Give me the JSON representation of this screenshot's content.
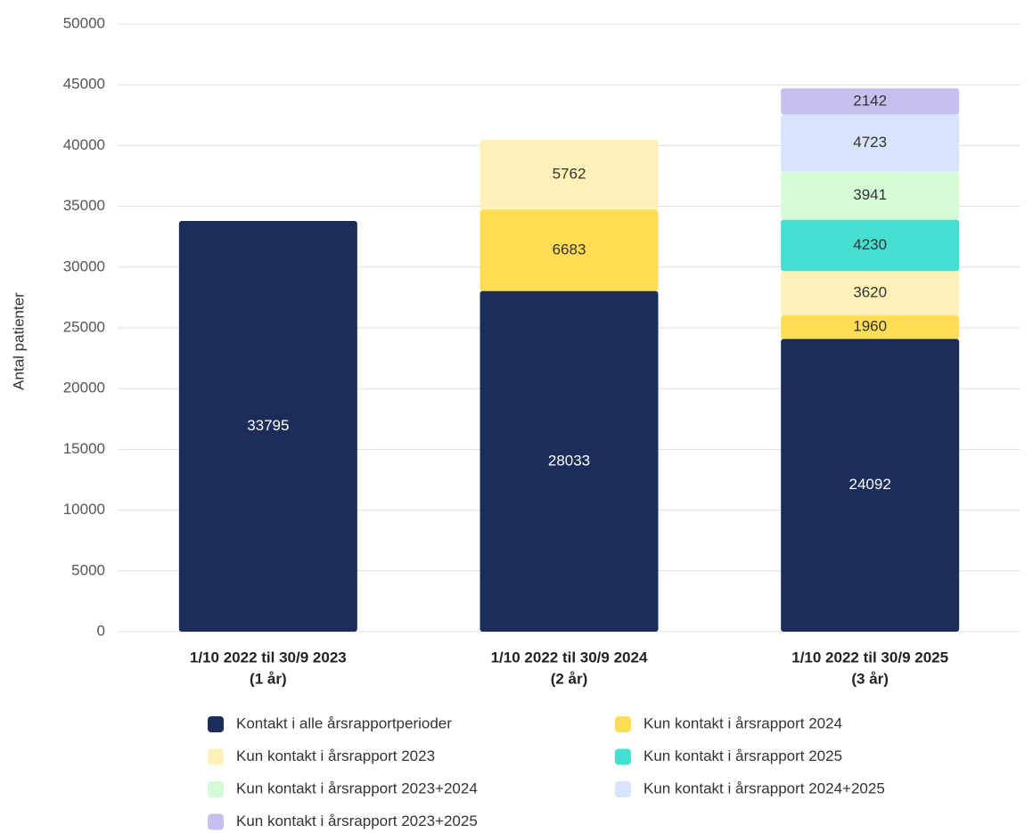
{
  "chart_data": {
    "type": "stacked-bar",
    "y_label": "Antal patienter",
    "categories": [
      [
        "1/10 2022 til 30/9 2023",
        "(1 år)"
      ],
      [
        "1/10 2022 til 30/9 2024",
        "(2 år)"
      ],
      [
        "1/10 2022 til 30/9 2025",
        "(3 år)"
      ]
    ],
    "series": [
      {
        "name": "Kontakt i alle årsrapportperioder",
        "color": "#1b2d5a",
        "label_color": "#ffffff",
        "values": [
          33795,
          28033,
          24092
        ]
      },
      {
        "name": "Kun kontakt i årsrapport 2024",
        "color": "#ffdd55",
        "label_color": "#333333",
        "values": [
          null,
          6683,
          1960
        ]
      },
      {
        "name": "Kun kontakt i årsrapport 2023",
        "color": "#fff1b8",
        "label_color": "#333333",
        "values": [
          null,
          5762,
          3620
        ]
      },
      {
        "name": "Kun kontakt i årsrapport 2025",
        "color": "#45dfd1",
        "label_color": "#333333",
        "values": [
          null,
          null,
          4230
        ]
      },
      {
        "name": "Kun kontakt i årsrapport 2023+2024",
        "color": "#d5fbd6",
        "label_color": "#333333",
        "values": [
          null,
          null,
          3941
        ]
      },
      {
        "name": "Kun kontakt i årsrapport 2024+2025",
        "color": "#d7e4fb",
        "label_color": "#333333",
        "values": [
          null,
          null,
          4723
        ]
      },
      {
        "name": "Kun kontakt i årsrapport 2023+2025",
        "color": "#c6c0ef",
        "label_color": "#333333",
        "values": [
          null,
          null,
          2142
        ]
      }
    ],
    "ylim": [
      0,
      50000
    ],
    "yticks": [
      0,
      5000,
      10000,
      15000,
      20000,
      25000,
      30000,
      35000,
      40000,
      45000,
      50000
    ],
    "grid": true,
    "legend": "bottom"
  }
}
